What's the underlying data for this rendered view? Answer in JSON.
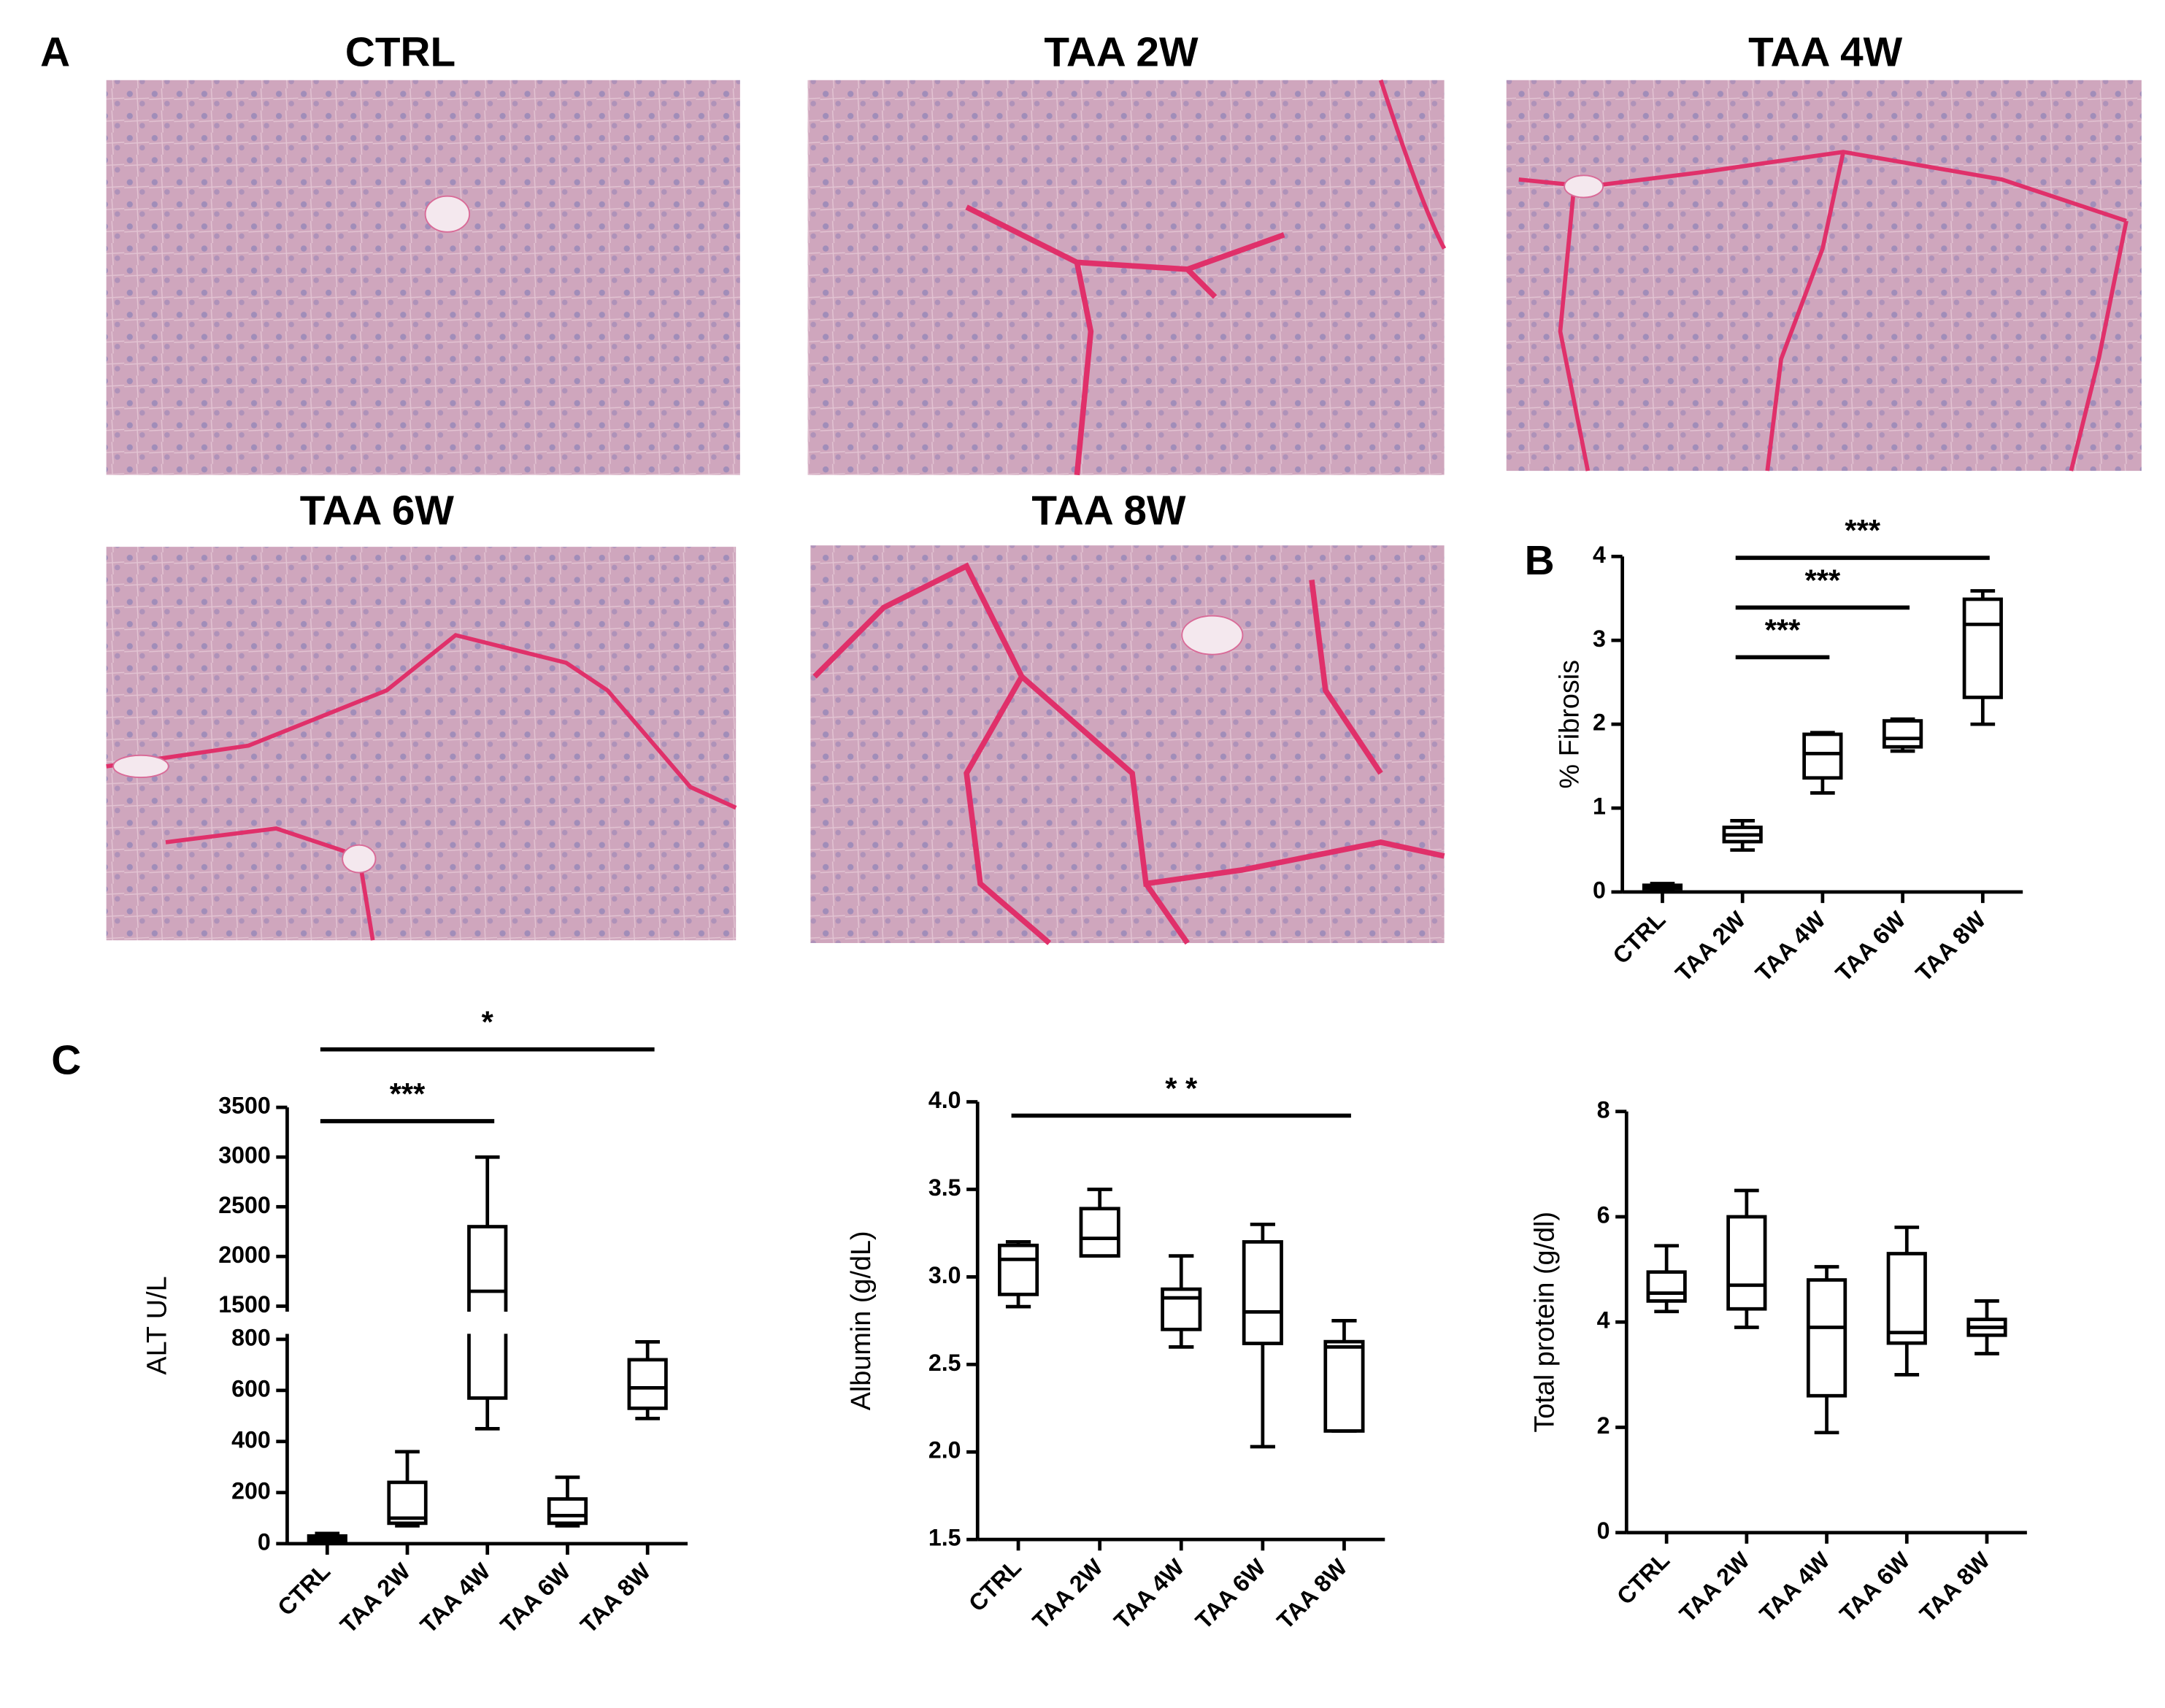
{
  "panel_labels": [
    "A",
    "B",
    "C"
  ],
  "micrographs": [
    {
      "title": "CTRL"
    },
    {
      "title": "TAA 2W"
    },
    {
      "title": "TAA 4W"
    },
    {
      "title": "TAA 6W"
    },
    {
      "title": "TAA 8W"
    }
  ],
  "chart_data": [
    {
      "type": "box",
      "y_label": "% Fibrosis",
      "color": "#000000",
      "categories": [
        "CTRL",
        "TAA 2W",
        "TAA 4W",
        "TAA 6W",
        "TAA 8W"
      ],
      "min": [
        0.02,
        0.5,
        1.18,
        1.68,
        2.0
      ],
      "q1": [
        0.04,
        0.6,
        1.36,
        1.73,
        2.32
      ],
      "median": [
        0.06,
        0.68,
        1.65,
        1.83,
        3.19
      ],
      "q3": [
        0.08,
        0.77,
        1.88,
        2.04,
        3.49
      ],
      "max": [
        0.1,
        0.85,
        1.9,
        2.06,
        3.59
      ],
      "ylim": [
        0,
        4
      ],
      "yticks": [
        0,
        1,
        2,
        3,
        4
      ],
      "annotations": [
        {
          "label": "***",
          "from": "TAA 2W",
          "to": "TAA 4W"
        },
        {
          "label": "***",
          "from": "TAA 2W",
          "to": "TAA 6W"
        },
        {
          "label": "***",
          "from": "TAA 2W",
          "to": "TAA 8W"
        }
      ]
    },
    {
      "type": "box",
      "y_label": "ALT U/L",
      "color": "#000000",
      "categories": [
        "CTRL",
        "TAA 2W",
        "TAA 4W",
        "TAA 6W",
        "TAA 8W"
      ],
      "min": [
        5,
        70,
        450,
        70,
        490
      ],
      "q1": [
        10,
        80,
        570,
        80,
        530
      ],
      "median": [
        20,
        100,
        1650,
        110,
        610
      ],
      "q3": [
        30,
        240,
        2300,
        175,
        720
      ],
      "max": [
        40,
        360,
        3000,
        260,
        790
      ],
      "ylim": [
        0,
        3500
      ],
      "ybreak": [
        800,
        1500
      ],
      "yticks": [
        0,
        200,
        400,
        600,
        800,
        1500,
        2000,
        2500,
        3000,
        3500
      ],
      "annotations": [
        {
          "label": "***",
          "from": "CTRL",
          "to": "TAA 4W"
        },
        {
          "label": "*",
          "from": "CTRL",
          "to": "TAA 8W"
        }
      ]
    },
    {
      "type": "box",
      "y_label": "Albumin (g/dL)",
      "color": "#000000",
      "categories": [
        "CTRL",
        "TAA 2W",
        "TAA 4W",
        "TAA 6W",
        "TAA 8W"
      ],
      "min": [
        2.83,
        3.12,
        2.6,
        2.03,
        2.12
      ],
      "q1": [
        2.9,
        3.12,
        2.7,
        2.62,
        2.12
      ],
      "median": [
        3.1,
        3.22,
        2.88,
        2.8,
        2.6
      ],
      "q3": [
        3.18,
        3.39,
        2.93,
        3.2,
        2.63
      ],
      "max": [
        3.2,
        3.5,
        3.12,
        3.3,
        2.75
      ],
      "ylim": [
        1.5,
        4
      ],
      "yticks": [
        1.5,
        {
          "value": 2,
          "label": "2.0"
        },
        2.5,
        {
          "value": 3,
          "label": "3.0"
        },
        3.5,
        {
          "value": 4,
          "label": "4.0"
        }
      ],
      "annotations": [
        {
          "label": "* *",
          "from": "CTRL",
          "to": "TAA 8W"
        }
      ]
    },
    {
      "type": "box",
      "y_label": "Total protein (g/dl)",
      "color": "#000000",
      "categories": [
        "CTRL",
        "TAA 2W",
        "TAA 4W",
        "TAA 6W",
        "TAA 8W"
      ],
      "min": [
        4.2,
        3.9,
        1.9,
        3.0,
        3.4
      ],
      "q1": [
        4.4,
        4.25,
        2.6,
        3.6,
        3.75
      ],
      "median": [
        4.55,
        4.7,
        3.9,
        3.8,
        3.9
      ],
      "q3": [
        4.95,
        6.0,
        4.8,
        5.3,
        4.05
      ],
      "max": [
        5.45,
        6.5,
        5.05,
        5.8,
        4.4
      ],
      "ylim": [
        0,
        8
      ],
      "yticks": [
        0,
        2,
        4,
        6,
        8
      ],
      "annotations": []
    }
  ]
}
